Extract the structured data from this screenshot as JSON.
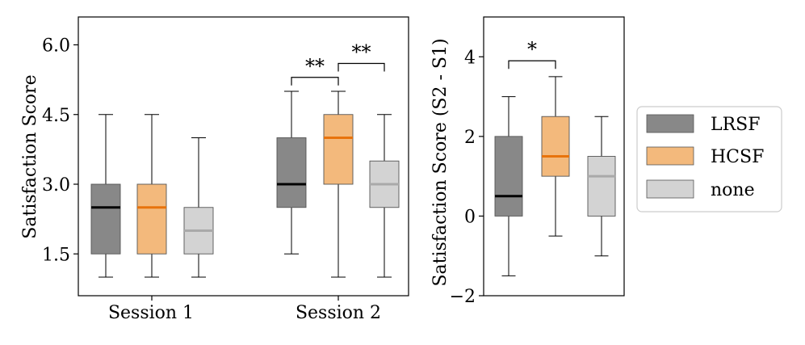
{
  "colors": {
    "lrsf_fill": "#888888",
    "lrsf_median": "#000000",
    "hcsf_fill": "#f3b97c",
    "hcsf_median": "#e8730c",
    "none_fill": "#d3d3d3",
    "none_median": "#a9a9a9",
    "edge": "#555555",
    "axis": "#000000"
  },
  "legend": {
    "entries": [
      {
        "label": "LRSF",
        "fill_key": "lrsf_fill"
      },
      {
        "label": "HCSF",
        "fill_key": "hcsf_fill"
      },
      {
        "label": "none",
        "fill_key": "none_fill"
      }
    ]
  },
  "chart_data": [
    {
      "type": "box",
      "id": "left",
      "ylabel": "Satisfaction Score",
      "ylim": [
        0.6,
        6.6
      ],
      "yticks": [
        1.5,
        3.0,
        4.5,
        6.0
      ],
      "ytick_labels": [
        "1.5",
        "3.0",
        "4.5",
        "6.0"
      ],
      "groups": [
        "Session 1",
        "Session 2"
      ],
      "series": [
        {
          "name": "LRSF",
          "group": "Session 1",
          "whislo": 1.0,
          "q1": 1.5,
          "med": 2.5,
          "q3": 3.0,
          "whishi": 4.5
        },
        {
          "name": "HCSF",
          "group": "Session 1",
          "whislo": 1.0,
          "q1": 1.5,
          "med": 2.5,
          "q3": 3.0,
          "whishi": 4.5
        },
        {
          "name": "none",
          "group": "Session 1",
          "whislo": 1.0,
          "q1": 1.5,
          "med": 2.0,
          "q3": 2.5,
          "whishi": 4.0
        },
        {
          "name": "LRSF",
          "group": "Session 2",
          "whislo": 1.5,
          "q1": 2.5,
          "med": 3.0,
          "q3": 4.0,
          "whishi": 5.0
        },
        {
          "name": "HCSF",
          "group": "Session 2",
          "whislo": 1.0,
          "q1": 3.0,
          "med": 4.0,
          "q3": 4.5,
          "whishi": 5.0
        },
        {
          "name": "none",
          "group": "Session 2",
          "whislo": 1.0,
          "q1": 2.5,
          "med": 3.0,
          "q3": 3.5,
          "whishi": 4.5
        }
      ],
      "annotations": [
        {
          "text": "**",
          "from": 3,
          "to": 4,
          "level": 5.3
        },
        {
          "text": "**",
          "from": 4,
          "to": 5,
          "level": 5.6
        }
      ]
    },
    {
      "type": "box",
      "id": "right",
      "ylabel": "Satisfaction Score (S2 - S1)",
      "ylim": [
        -2.0,
        5.0
      ],
      "yticks": [
        -2,
        0,
        2,
        4
      ],
      "ytick_labels": [
        "−2",
        "0",
        "2",
        "4"
      ],
      "series": [
        {
          "name": "LRSF",
          "whislo": -1.5,
          "q1": 0.0,
          "med": 0.5,
          "q3": 2.0,
          "whishi": 3.0
        },
        {
          "name": "HCSF",
          "whislo": -0.5,
          "q1": 1.0,
          "med": 1.5,
          "q3": 2.5,
          "whishi": 3.5
        },
        {
          "name": "none",
          "whislo": -1.0,
          "q1": 0.0,
          "med": 1.0,
          "q3": 1.5,
          "whishi": 2.5
        }
      ],
      "annotations": [
        {
          "text": "*",
          "from": 0,
          "to": 1,
          "level": 3.9
        }
      ]
    }
  ]
}
